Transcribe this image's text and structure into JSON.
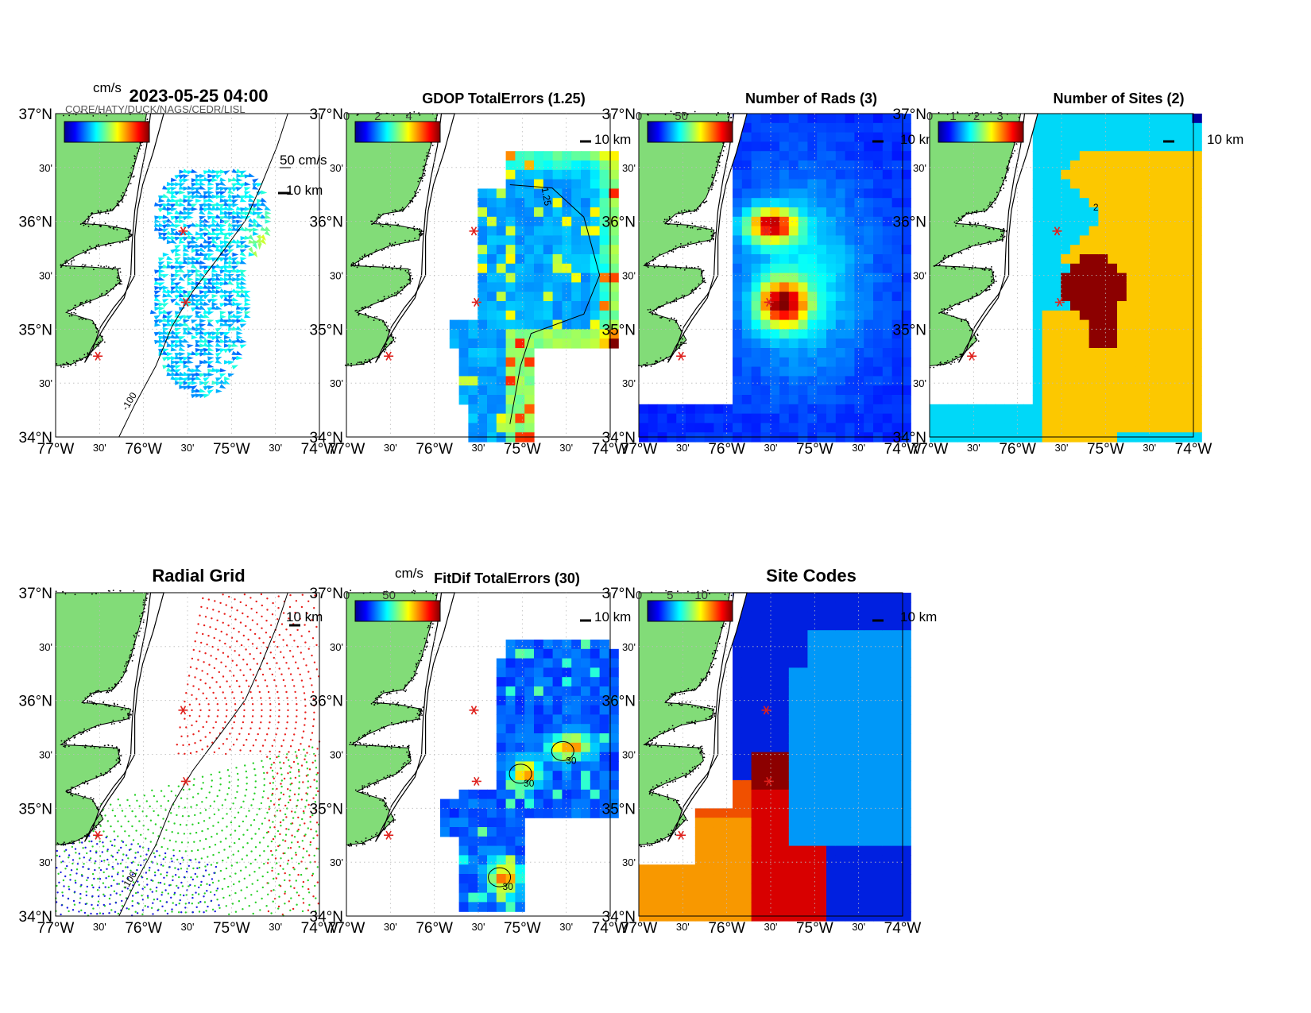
{
  "figure": {
    "timestamp": "2023-05-25 04:00",
    "overlap_label": "CORE/HATY/DUCK/NAGS/CEDR/LISL",
    "scale_bar": "10 km",
    "legend_arrow": "50 cm/s",
    "unit": "cm/s",
    "lat_labels": [
      "37°N",
      "30'",
      "36°N",
      "30'",
      "35°N",
      "30'",
      "34°N"
    ],
    "lon_labels": [
      "77°W",
      "30'",
      "76°W",
      "30'",
      "75°W",
      "30'",
      "74°W"
    ],
    "contour_labels": {
      "isobath": "-100",
      "gdop": "1.25",
      "sites": "2",
      "fitdif": "30"
    }
  },
  "panels": [
    {
      "id": "vectors",
      "title": "",
      "cbar_ticks": []
    },
    {
      "id": "gdop",
      "title": "GDOP TotalErrors (1.25)",
      "cbar_ticks": [
        "0",
        "2",
        "4"
      ]
    },
    {
      "id": "rads",
      "title": "Number of Rads (3)",
      "cbar_ticks": [
        "0",
        "50"
      ]
    },
    {
      "id": "sites",
      "title": "Number of Sites (2)",
      "cbar_ticks": [
        "0",
        "1",
        "2",
        "3"
      ]
    },
    {
      "id": "radial",
      "title": "Radial Grid",
      "cbar_ticks": []
    },
    {
      "id": "fitdif",
      "title": "FitDif TotalErrors (30)",
      "cbar_ticks": [
        "0",
        "50"
      ]
    },
    {
      "id": "codes",
      "title": "Site Codes",
      "cbar_ticks": [
        "0",
        "5",
        "10"
      ]
    }
  ],
  "colors": {
    "land": "#82dc78",
    "site_marker": "#e0201c",
    "radial_north": "#e8201c",
    "radial_middle": "#28d028",
    "radial_south": "#1c1ce0",
    "sites_one": "#00d8f8",
    "sites_two": "#fcc800",
    "sites_three": "#8c0000"
  },
  "sites": [
    {
      "lon": -75.55,
      "lat": 35.91
    },
    {
      "lon": -75.52,
      "lat": 35.25
    },
    {
      "lon": -76.52,
      "lat": 34.75
    }
  ]
}
